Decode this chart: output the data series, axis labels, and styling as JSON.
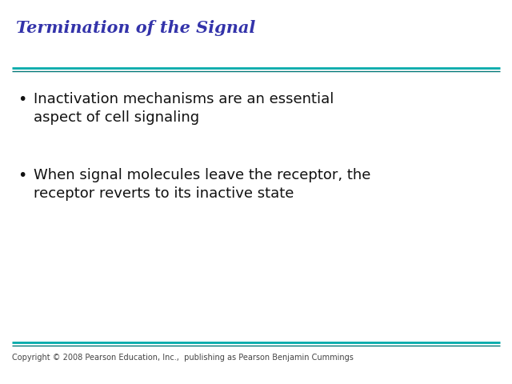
{
  "title": "Termination of the Signal",
  "title_color": "#3333AA",
  "title_fontstyle": "italic",
  "title_fontsize": 15,
  "title_fontfamily": "serif",
  "line_color": "#00AAAA",
  "line_color2": "#007777",
  "bullet_points": [
    "Inactivation mechanisms are an essential\naspect of cell signaling",
    "When signal molecules leave the receptor, the\nreceptor reverts to its inactive state"
  ],
  "bullet_fontsize": 13,
  "bullet_color": "#111111",
  "copyright_text": "Copyright © 2008 Pearson Education, Inc.,  publishing as Pearson Benjamin Cummings",
  "copyright_fontsize": 7,
  "copyright_color": "#444444",
  "bg_color": "#ffffff"
}
